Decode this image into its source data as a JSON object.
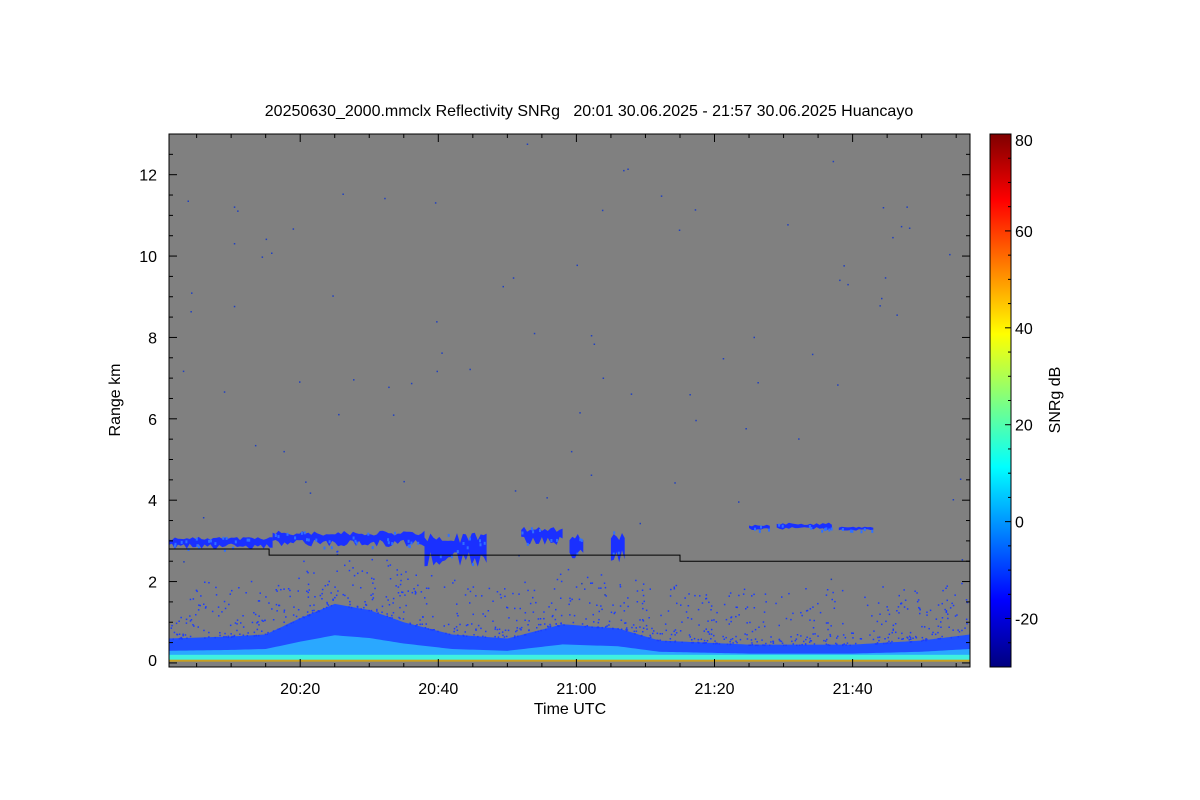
{
  "chart_data": {
    "type": "heatmap",
    "title": "20250630_2000.mmclx Reflectivity SNRg   20:01 30.06.2025 - 21:57 30.06.2025 Huancayo",
    "xlabel": "Time UTC",
    "ylabel": "Range km",
    "colorbar_label": "SNRg dB",
    "xlim_minutes": [
      1,
      117
    ],
    "ylim_km": [
      -0.1,
      13.0
    ],
    "x_ticks": [
      {
        "minutes": 20,
        "label": "20:20"
      },
      {
        "minutes": 40,
        "label": "20:40"
      },
      {
        "minutes": 60,
        "label": "21:00"
      },
      {
        "minutes": 80,
        "label": "21:20"
      },
      {
        "minutes": 100,
        "label": "21:40"
      }
    ],
    "y_ticks": [
      {
        "value": 0,
        "label": "0"
      },
      {
        "value": 2,
        "label": "2"
      },
      {
        "value": 4,
        "label": "4"
      },
      {
        "value": 6,
        "label": "6"
      },
      {
        "value": 8,
        "label": "8"
      },
      {
        "value": 10,
        "label": "10"
      },
      {
        "value": 12,
        "label": "12"
      }
    ],
    "colorbar_range": [
      -30,
      80
    ],
    "colorbar_ticks": [
      {
        "value": -20,
        "label": "-20"
      },
      {
        "value": 0,
        "label": "0"
      },
      {
        "value": 20,
        "label": "20"
      },
      {
        "value": 40,
        "label": "40"
      },
      {
        "value": 60,
        "label": "60"
      },
      {
        "value": 80,
        "label": "80"
      }
    ],
    "colormap": "jet",
    "background_color": "#808080",
    "reference_line_steps": [
      {
        "minutes_start": 1,
        "minutes_end": 15.5,
        "km": 2.8
      },
      {
        "minutes_start": 15.5,
        "minutes_end": 75,
        "km": 2.65
      },
      {
        "minutes_start": 75,
        "minutes_end": 117,
        "km": 2.5
      }
    ],
    "cloud_layers": [
      {
        "minutes_start": 1,
        "minutes_end": 16,
        "km_bottom": 2.8,
        "km_top": 3.1
      },
      {
        "minutes_start": 16,
        "minutes_end": 38,
        "km_bottom": 2.85,
        "km_top": 3.25
      },
      {
        "minutes_start": 38,
        "minutes_end": 47,
        "km_bottom": 2.35,
        "km_top": 3.2
      },
      {
        "minutes_start": 52,
        "minutes_end": 58,
        "km_bottom": 2.9,
        "km_top": 3.35
      },
      {
        "minutes_start": 59,
        "minutes_end": 61,
        "km_bottom": 2.55,
        "km_top": 3.2
      },
      {
        "minutes_start": 65,
        "minutes_end": 67,
        "km_bottom": 2.4,
        "km_top": 3.25
      },
      {
        "minutes_start": 85,
        "minutes_end": 88,
        "km_bottom": 3.25,
        "km_top": 3.4
      },
      {
        "minutes_start": 89,
        "minutes_end": 97,
        "km_bottom": 3.25,
        "km_top": 3.45
      },
      {
        "minutes_start": 98,
        "minutes_end": 103,
        "km_bottom": 3.25,
        "km_top": 3.35
      }
    ],
    "boundary_layer_top_km": [
      [
        1,
        0.6
      ],
      [
        10,
        0.65
      ],
      [
        15,
        0.7
      ],
      [
        20,
        1.1
      ],
      [
        25,
        1.45
      ],
      [
        30,
        1.3
      ],
      [
        35,
        1.0
      ],
      [
        42,
        0.7
      ],
      [
        50,
        0.6
      ],
      [
        58,
        0.95
      ],
      [
        66,
        0.85
      ],
      [
        72,
        0.55
      ],
      [
        85,
        0.45
      ],
      [
        100,
        0.45
      ],
      [
        110,
        0.55
      ],
      [
        117,
        0.7
      ]
    ]
  }
}
